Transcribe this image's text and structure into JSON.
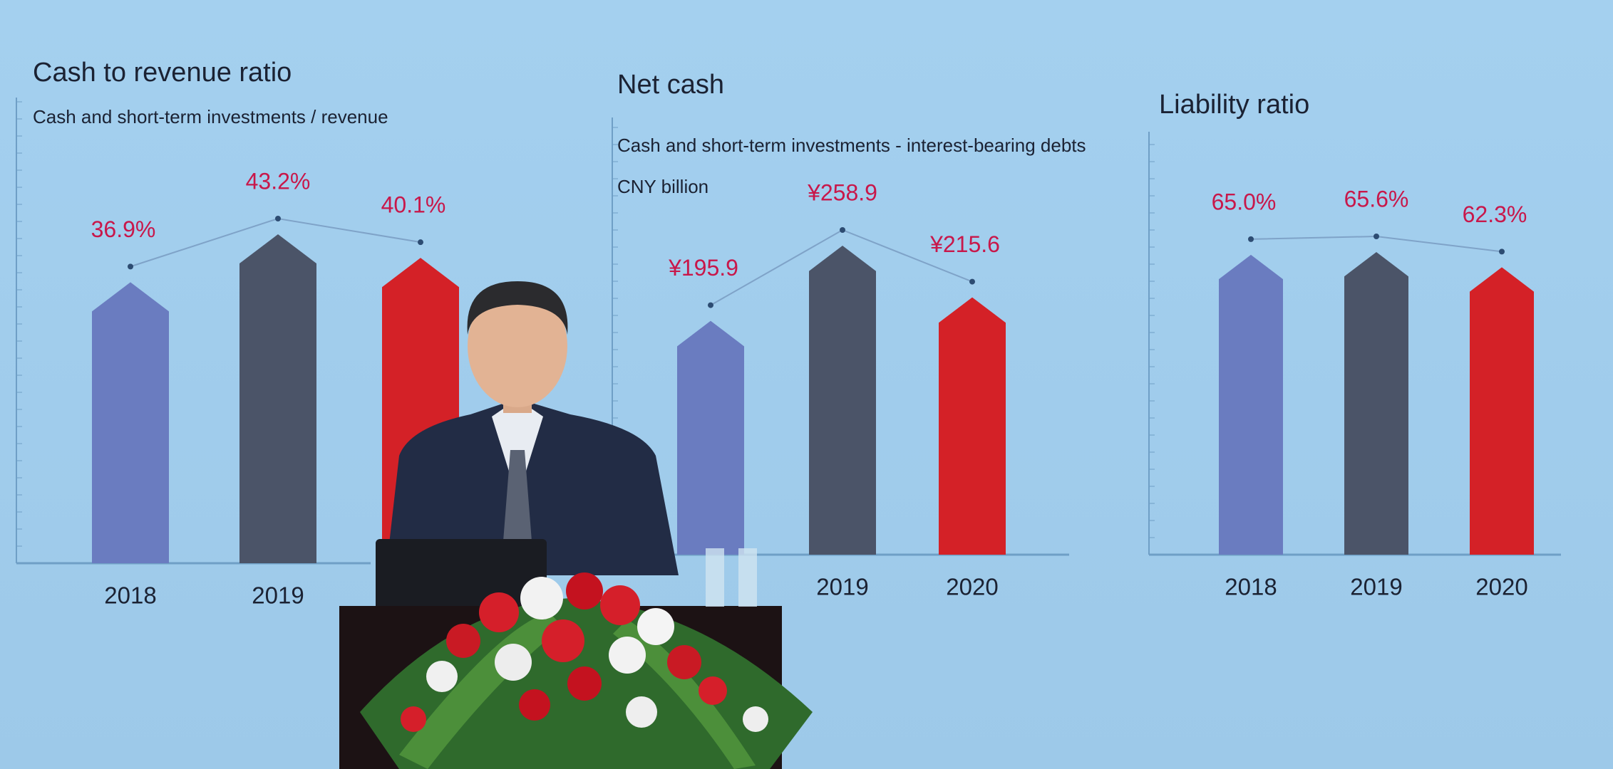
{
  "chart_data": [
    {
      "type": "bar",
      "title": "Cash to revenue ratio",
      "subtitle": "Cash and short-term investments / revenue",
      "categories": [
        "2018",
        "2019",
        null
      ],
      "values": [
        36.9,
        43.2,
        40.1
      ],
      "value_labels": [
        "36.9%",
        "43.2%",
        "40.1%"
      ],
      "colors": [
        "#6a7cc0",
        "#4b5468",
        "#d42127"
      ],
      "label_color": "#c8174a"
    },
    {
      "type": "bar",
      "title": "Net cash",
      "subtitle": "Cash and short-term investments - interest-bearing debts",
      "unit": "CNY billion",
      "categories": [
        null,
        "2019",
        "2020"
      ],
      "values": [
        195.9,
        258.9,
        215.6
      ],
      "value_labels": [
        "¥195.9",
        "¥258.9",
        "¥215.6"
      ],
      "colors": [
        "#6a7cc0",
        "#4b5468",
        "#d42127"
      ],
      "label_color": "#c8174a"
    },
    {
      "type": "bar",
      "title": "Liability ratio",
      "categories": [
        "2018",
        "2019",
        "2020"
      ],
      "values": [
        65.0,
        65.6,
        62.3
      ],
      "value_labels": [
        "65.0%",
        "65.6%",
        "62.3%"
      ],
      "colors": [
        "#6a7cc0",
        "#4b5468",
        "#d42127"
      ],
      "label_color": "#c8174a"
    }
  ]
}
